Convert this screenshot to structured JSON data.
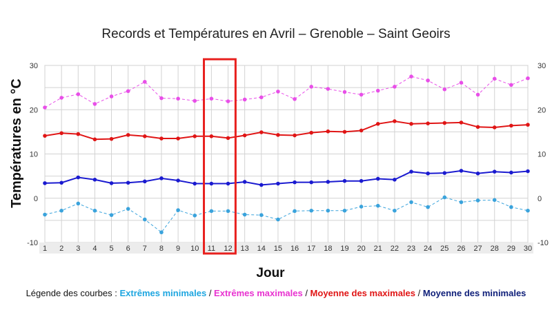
{
  "chart_data": {
    "type": "line",
    "title": "Records et Températures en Avril – Grenoble – Saint Geoirs",
    "xlabel": "Jour",
    "ylabel": "Températures en °C",
    "x": [
      1,
      2,
      3,
      4,
      5,
      6,
      7,
      8,
      9,
      10,
      11,
      12,
      13,
      14,
      15,
      16,
      17,
      18,
      19,
      20,
      21,
      22,
      23,
      24,
      25,
      26,
      27,
      28,
      29,
      30
    ],
    "ylim": [
      -10,
      30
    ],
    "yticks": [
      -10,
      0,
      10,
      20,
      30
    ],
    "grid": true,
    "highlight": {
      "x_from": 11,
      "x_to": 12,
      "color": "#e8201e"
    },
    "series": [
      {
        "name": "Extrêmes minimales",
        "color": "#3aa3dc",
        "style": "dashed",
        "values": [
          -3.7,
          -2.8,
          -1.2,
          -2.8,
          -3.8,
          -2.4,
          -4.8,
          -7.7,
          -2.7,
          -3.9,
          -2.9,
          -2.9,
          -3.7,
          -3.8,
          -4.8,
          -2.9,
          -2.8,
          -2.8,
          -2.8,
          -1.9,
          -1.7,
          -2.8,
          -0.9,
          -2.0,
          0.2,
          -0.9,
          -0.5,
          -0.4,
          -2.0,
          -2.8
        ]
      },
      {
        "name": "Extrêmes maximales",
        "color": "#e84fe8",
        "style": "dashed",
        "values": [
          20.5,
          22.7,
          23.5,
          21.3,
          23.0,
          24.2,
          26.3,
          22.6,
          22.5,
          22.0,
          22.5,
          21.9,
          22.3,
          22.8,
          24.1,
          22.4,
          25.2,
          24.7,
          24.0,
          23.4,
          24.3,
          25.2,
          27.5,
          26.6,
          24.6,
          26.1,
          23.4,
          27.0,
          25.6,
          27.1
        ]
      },
      {
        "name": "Moyenne des maximales",
        "color": "#e01515",
        "style": "solid",
        "values": [
          14.1,
          14.7,
          14.5,
          13.3,
          13.4,
          14.3,
          14.0,
          13.5,
          13.5,
          14.0,
          14.0,
          13.6,
          14.2,
          14.9,
          14.3,
          14.2,
          14.8,
          15.1,
          15.0,
          15.3,
          16.8,
          17.4,
          16.8,
          16.9,
          17.0,
          17.1,
          16.1,
          16.0,
          16.4,
          16.6
        ]
      },
      {
        "name": "Moyenne des minimales",
        "color": "#1a1ad0",
        "style": "solid",
        "values": [
          3.4,
          3.5,
          4.7,
          4.2,
          3.4,
          3.5,
          3.8,
          4.5,
          4.0,
          3.3,
          3.3,
          3.3,
          3.7,
          3.0,
          3.3,
          3.6,
          3.6,
          3.7,
          3.9,
          3.9,
          4.4,
          4.2,
          6.0,
          5.6,
          5.7,
          6.2,
          5.6,
          6.0,
          5.8,
          6.1
        ]
      }
    ]
  },
  "legend": {
    "prefix": "Légende des courbes : ",
    "sep": " / ",
    "items": [
      {
        "label": "Extrêmes minimales",
        "color": "#1ea6e0"
      },
      {
        "label": "Extrêmes maximales",
        "color": "#e832d0"
      },
      {
        "label": "Moyenne des maximales",
        "color": "#e01515"
      },
      {
        "label": "Moyenne des minimales",
        "color": "#10207a"
      }
    ]
  }
}
